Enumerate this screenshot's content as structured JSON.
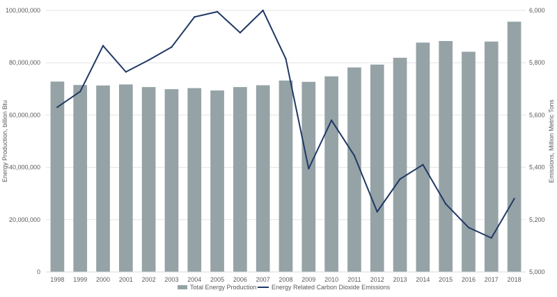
{
  "chart_data": {
    "type": "bar+line",
    "categories": [
      "1998",
      "1999",
      "2000",
      "2001",
      "2002",
      "2003",
      "2004",
      "2005",
      "2006",
      "2007",
      "2008",
      "2009",
      "2010",
      "2011",
      "2012",
      "2013",
      "2014",
      "2015",
      "2016",
      "2017",
      "2018"
    ],
    "series": [
      {
        "name": "Total Energy Production",
        "type": "bar",
        "axis": "left",
        "color": "#95a3a6",
        "values": [
          72800000,
          71500000,
          71300000,
          71700000,
          70700000,
          69900000,
          70300000,
          69400000,
          70700000,
          71400000,
          73200000,
          72700000,
          74800000,
          78200000,
          79300000,
          81900000,
          87700000,
          88300000,
          84200000,
          88100000,
          95700000
        ]
      },
      {
        "name": "Energy Related Carbon Dioxide Emissions",
        "type": "line",
        "axis": "right",
        "color": "#203864",
        "values": [
          5630,
          5690,
          5865,
          5765,
          5810,
          5860,
          5975,
          5995,
          5915,
          6000,
          5815,
          5395,
          5580,
          5445,
          5230,
          5355,
          5410,
          5260,
          5170,
          5130,
          5280
        ]
      }
    ],
    "y_left": {
      "label": "Energy Production, billion Btu",
      "range": [
        0,
        100000000
      ],
      "ticks": [
        0,
        20000000,
        40000000,
        60000000,
        80000000,
        100000000
      ],
      "tick_labels": [
        "0",
        "20,000,000",
        "40,000,000",
        "60,000,000",
        "80,000,000",
        "100,000,000"
      ]
    },
    "y_right": {
      "label": "Emissions, Million Metric Tons",
      "range": [
        5000,
        6000
      ],
      "ticks": [
        5000,
        5200,
        5400,
        5600,
        5800,
        6000
      ],
      "tick_labels": [
        "5,000",
        "5,200",
        "5,400",
        "5,600",
        "5,800",
        "6,000"
      ]
    },
    "grid": true,
    "legend_position": "bottom"
  }
}
